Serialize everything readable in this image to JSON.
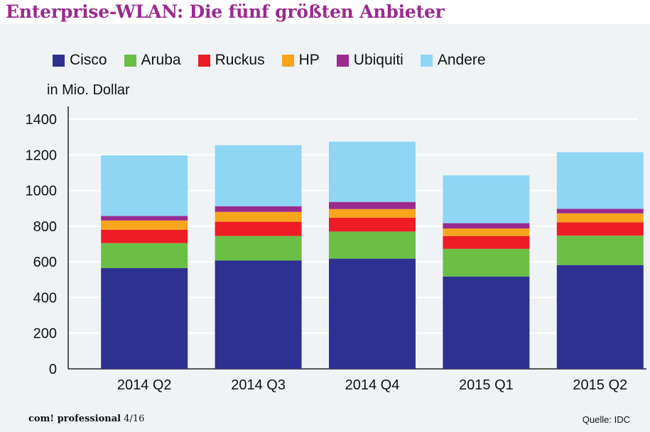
{
  "title": "Enterprise-WLAN: Die fünf größten Anbieter",
  "footer": {
    "brand": "com! professional",
    "issue": "4/16",
    "source": "Quelle: IDC"
  },
  "colors": {
    "title": "#9b2a8f",
    "panel": "#f0f3f6"
  },
  "chart_data": {
    "type": "bar",
    "stacked": true,
    "ylabel": "in Mio. Dollar",
    "ylim": [
      0,
      1400
    ],
    "yticks": [
      0,
      200,
      400,
      600,
      800,
      1000,
      1200,
      1400
    ],
    "grid": true,
    "legend_position": "top",
    "categories": [
      "2014 Q2",
      "2014 Q3",
      "2014 Q4",
      "2015 Q1",
      "2015 Q2"
    ],
    "series": [
      {
        "name": "Cisco",
        "color": "#2e3192",
        "values": [
          565,
          608,
          618,
          518,
          582
        ]
      },
      {
        "name": "Aruba",
        "color": "#6bbf45",
        "values": [
          140,
          137,
          152,
          155,
          165
        ]
      },
      {
        "name": "Ruckus",
        "color": "#ee1c24",
        "values": [
          75,
          80,
          78,
          72,
          75
        ]
      },
      {
        "name": "HP",
        "color": "#f7a51c",
        "values": [
          52,
          55,
          48,
          42,
          50
        ]
      },
      {
        "name": "Ubiquiti",
        "color": "#9b2a8f",
        "values": [
          25,
          32,
          40,
          30,
          25
        ]
      },
      {
        "name": "Andere",
        "color": "#8fd6f5",
        "values": [
          340,
          342,
          338,
          268,
          318
        ]
      }
    ]
  }
}
